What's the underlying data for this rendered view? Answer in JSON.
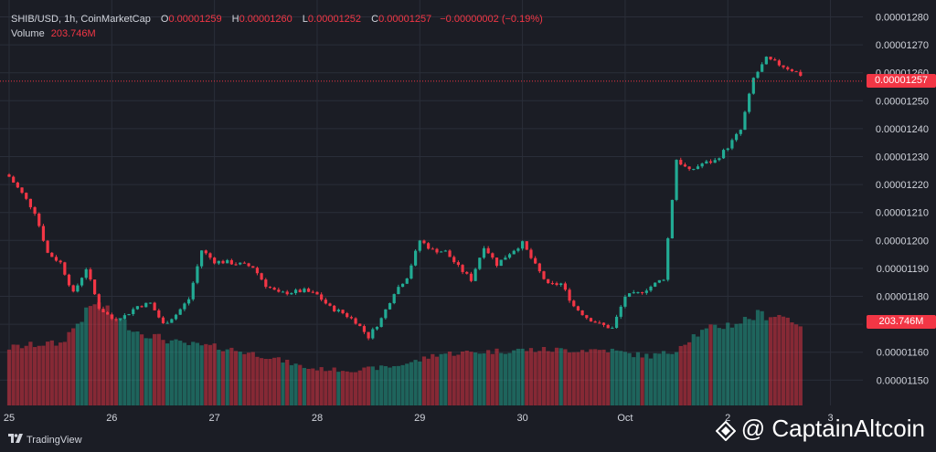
{
  "header": {
    "symbol": "SHIB/USD, 1h, CoinMarketCap",
    "open_label": "O",
    "open": "0.00001259",
    "high_label": "H",
    "high": "0.00001260",
    "low_label": "L",
    "low": "0.00001252",
    "close_label": "C",
    "close": "0.00001257",
    "change": "−0.00000002 (−0.19%)",
    "volume_label": "Volume",
    "volume": "203.746M"
  },
  "price_tag": "0.00001257",
  "volume_tag": "203.746M",
  "brand": {
    "name": "TradingView"
  },
  "watermark": "@ CaptainAltcoin",
  "colors": {
    "up": "#22ab94",
    "down": "#f23645",
    "background": "#1b1d25",
    "grid": "#2a2e39",
    "text": "#d1d4dc"
  },
  "chart_data": {
    "type": "candlestick",
    "timeframe": "1h",
    "y_axis": {
      "ticks": [
        "0.00001280",
        "0.00001270",
        "0.00001260",
        "0.00001250",
        "0.00001240",
        "0.00001230",
        "0.00001220",
        "0.00001210",
        "0.00001200",
        "0.00001190",
        "0.00001180",
        "0.00001170",
        "0.00001160",
        "0.00001150"
      ],
      "range": [
        1.146e-05,
        1.283e-05
      ]
    },
    "x_axis": {
      "ticks": [
        {
          "label": "25",
          "index": 0
        },
        {
          "label": "26",
          "index": 24
        },
        {
          "label": "27",
          "index": 48
        },
        {
          "label": "28",
          "index": 72
        },
        {
          "label": "29",
          "index": 96
        },
        {
          "label": "30",
          "index": 120
        },
        {
          "label": "Oct",
          "index": 144
        },
        {
          "label": "2",
          "index": 168
        },
        {
          "label": "3",
          "index": 192
        }
      ]
    },
    "last_close": 1.257e-05,
    "volume_last": "203.746M",
    "anchors_close": [
      [
        0,
        1.2228
      ],
      [
        3,
        1.2168
      ],
      [
        6,
        1.2102
      ],
      [
        9,
        1.1955
      ],
      [
        12,
        1.192
      ],
      [
        15,
        1.181
      ],
      [
        18,
        1.19
      ],
      [
        21,
        1.176
      ],
      [
        24,
        1.172
      ],
      [
        27,
        1.173
      ],
      [
        30,
        1.1765
      ],
      [
        33,
        1.1775
      ],
      [
        36,
        1.17
      ],
      [
        39,
        1.1735
      ],
      [
        42,
        1.179
      ],
      [
        45,
        1.1965
      ],
      [
        48,
        1.1925
      ],
      [
        51,
        1.1922
      ],
      [
        54,
        1.1915
      ],
      [
        57,
        1.1905
      ],
      [
        60,
        1.184
      ],
      [
        63,
        1.181
      ],
      [
        66,
        1.1815
      ],
      [
        69,
        1.182
      ],
      [
        72,
        1.1805
      ],
      [
        75,
        1.176
      ],
      [
        78,
        1.174
      ],
      [
        81,
        1.171
      ],
      [
        84,
        1.1655
      ],
      [
        87,
        1.172
      ],
      [
        90,
        1.1815
      ],
      [
        93,
        1.187
      ],
      [
        96,
        1.2
      ],
      [
        99,
        1.1965
      ],
      [
        102,
        1.196
      ],
      [
        105,
        1.1905
      ],
      [
        108,
        1.186
      ],
      [
        111,
        1.198
      ],
      [
        114,
        1.1915
      ],
      [
        117,
        1.1955
      ],
      [
        120,
        1.199
      ],
      [
        123,
        1.191
      ],
      [
        126,
        1.184
      ],
      [
        129,
        1.1845
      ],
      [
        132,
        1.1765
      ],
      [
        135,
        1.1725
      ],
      [
        138,
        1.17
      ],
      [
        141,
        1.1685
      ],
      [
        144,
        1.18
      ],
      [
        147,
        1.181
      ],
      [
        150,
        1.1835
      ],
      [
        153,
        1.1865
      ],
      [
        156,
        1.229
      ],
      [
        159,
        1.2248
      ],
      [
        162,
        1.2275
      ],
      [
        165,
        1.2285
      ],
      [
        168,
        1.2335
      ],
      [
        171,
        1.2395
      ],
      [
        174,
        1.258
      ],
      [
        177,
        1.265
      ],
      [
        180,
        1.263
      ],
      [
        183,
        1.261
      ],
      [
        184,
        1.2601
      ],
      [
        185,
        1.2593
      ]
    ],
    "anchors_volume_rel": [
      [
        0,
        0.28
      ],
      [
        8,
        0.3
      ],
      [
        12,
        0.3
      ],
      [
        20,
        0.5
      ],
      [
        30,
        0.36
      ],
      [
        40,
        0.3
      ],
      [
        50,
        0.28
      ],
      [
        60,
        0.24
      ],
      [
        70,
        0.18
      ],
      [
        80,
        0.17
      ],
      [
        90,
        0.19
      ],
      [
        96,
        0.22
      ],
      [
        100,
        0.25
      ],
      [
        110,
        0.26
      ],
      [
        120,
        0.27
      ],
      [
        130,
        0.27
      ],
      [
        140,
        0.27
      ],
      [
        145,
        0.25
      ],
      [
        150,
        0.24
      ],
      [
        155,
        0.26
      ],
      [
        160,
        0.34
      ],
      [
        165,
        0.38
      ],
      [
        170,
        0.4
      ],
      [
        175,
        0.44
      ],
      [
        180,
        0.44
      ],
      [
        185,
        0.4
      ]
    ]
  }
}
